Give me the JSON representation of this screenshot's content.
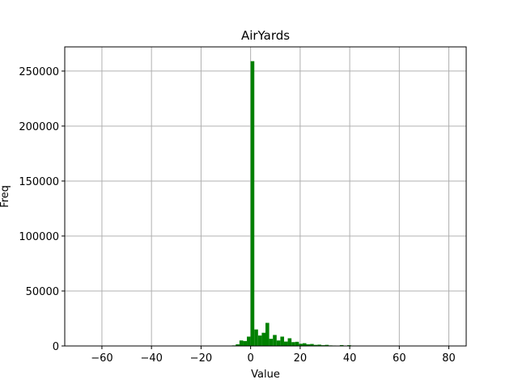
{
  "chart_data": {
    "type": "bar",
    "title": "AirYards",
    "xlabel": "Value",
    "ylabel": "Freq",
    "xlim": [
      -75,
      87
    ],
    "ylim": [
      0,
      272000
    ],
    "xticks": [
      -60,
      -40,
      -20,
      0,
      20,
      40,
      60,
      80
    ],
    "xtick_labels": [
      "−60",
      "−40",
      "−20",
      "0",
      "20",
      "40",
      "60",
      "80"
    ],
    "yticks": [
      0,
      50000,
      100000,
      150000,
      200000,
      250000
    ],
    "ytick_labels": [
      "0",
      "50000",
      "100000",
      "150000",
      "200000",
      "250000"
    ],
    "grid": true,
    "bar_color": "#008000",
    "bin_width": 1.5,
    "bins": [
      {
        "start": -7.5,
        "value": 500
      },
      {
        "start": -6.0,
        "value": 1500
      },
      {
        "start": -4.5,
        "value": 5000
      },
      {
        "start": -3.0,
        "value": 4500
      },
      {
        "start": -1.5,
        "value": 8500
      },
      {
        "start": 0.0,
        "value": 259000
      },
      {
        "start": 1.5,
        "value": 15000
      },
      {
        "start": 3.0,
        "value": 9500
      },
      {
        "start": 4.5,
        "value": 12000
      },
      {
        "start": 6.0,
        "value": 21000
      },
      {
        "start": 7.5,
        "value": 6500
      },
      {
        "start": 9.0,
        "value": 10000
      },
      {
        "start": 10.5,
        "value": 5000
      },
      {
        "start": 12.0,
        "value": 8500
      },
      {
        "start": 13.5,
        "value": 4000
      },
      {
        "start": 15.0,
        "value": 7000
      },
      {
        "start": 16.5,
        "value": 3500
      },
      {
        "start": 18.0,
        "value": 3800
      },
      {
        "start": 19.5,
        "value": 2000
      },
      {
        "start": 21.0,
        "value": 2500
      },
      {
        "start": 22.5,
        "value": 1500
      },
      {
        "start": 24.0,
        "value": 1800
      },
      {
        "start": 25.5,
        "value": 1000
      },
      {
        "start": 27.0,
        "value": 1200
      },
      {
        "start": 28.5,
        "value": 700
      },
      {
        "start": 30.0,
        "value": 1000
      },
      {
        "start": 31.5,
        "value": 500
      },
      {
        "start": 33.0,
        "value": 400
      },
      {
        "start": 34.5,
        "value": 300
      },
      {
        "start": 36.0,
        "value": 800
      },
      {
        "start": 37.5,
        "value": 250
      },
      {
        "start": 39.0,
        "value": 700
      },
      {
        "start": 40.5,
        "value": 200
      },
      {
        "start": 42.0,
        "value": 150
      }
    ]
  }
}
